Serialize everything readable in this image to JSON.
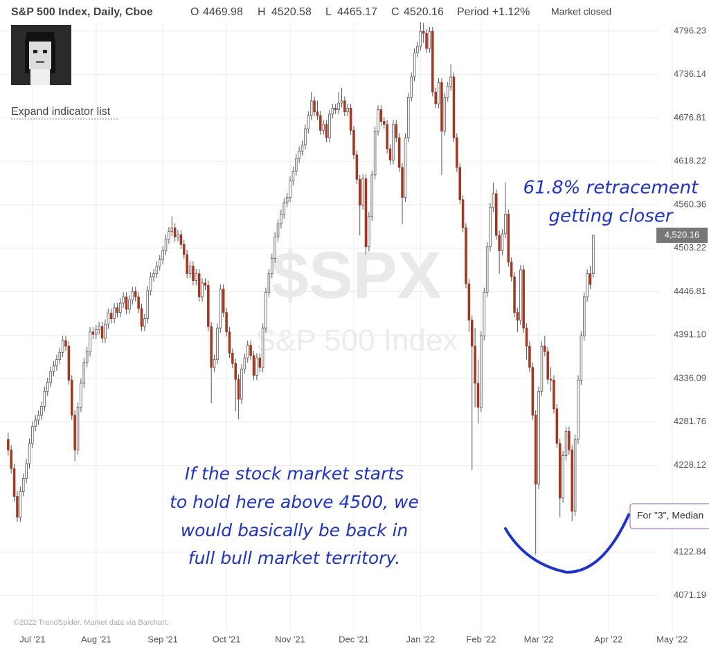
{
  "chart_data": {
    "type": "candlestick",
    "title": "S&P 500 Index, Daily, Cboe",
    "header": {
      "open_label": "O",
      "high_label": "H",
      "low_label": "L",
      "close_label": "C",
      "period": "Period +1.12%",
      "status": "Market closed"
    },
    "expand_link": "Expand indicator list",
    "watermark": "$SPX",
    "watermark_sub": "S&P 500 Index",
    "last_value_label": "4,520.16",
    "credit": "©2022 TrendSpider. Market data via Barchart.",
    "annotations": {
      "retracement": [
        "61.8% retracement",
        "getting closer"
      ],
      "note": [
        "If the stock market starts",
        "to hold here above 4500, we",
        "would basically be back in",
        "full bull market territory."
      ]
    },
    "tooltip": "For \"3\", Median",
    "up_color": "#ffffff",
    "down_color": "#a8351f",
    "wick_color": "#555555",
    "log_scale": true,
    "grid": true,
    "xlim": [
      -2.7,
      225
    ],
    "xticks": [
      {
        "value": 8,
        "label": "Jul '21"
      },
      {
        "value": 29,
        "label": "Aug '21"
      },
      {
        "value": 51,
        "label": "Sep '21"
      },
      {
        "value": 72,
        "label": "Oct '21"
      },
      {
        "value": 93,
        "label": "Nov '21"
      },
      {
        "value": 114,
        "label": "Dec '21"
      },
      {
        "value": 136,
        "label": "Jan '22"
      },
      {
        "value": 156,
        "label": "Feb '22"
      },
      {
        "value": 175,
        "label": "Mar '22"
      },
      {
        "value": 198,
        "label": "Apr '22"
      },
      {
        "value": 219,
        "label": "May '22"
      }
    ],
    "ylim": [
      4040,
      4830
    ],
    "yticks": [
      4796.23,
      4736.14,
      4676.81,
      4618.22,
      4560.36,
      4503.22,
      4446.81,
      {
        "value": 4391.1,
        "label": "4391.10"
      },
      4336.09,
      4281.76,
      4228.12,
      4122.84,
      4071.19
    ],
    "ohlc": [
      [
        4260,
        4268,
        4240,
        4247
      ],
      [
        4247,
        4253,
        4218,
        4224
      ],
      [
        4224,
        4230,
        4184,
        4190
      ],
      [
        4190,
        4196,
        4159,
        4165
      ],
      [
        4165,
        4202,
        4159,
        4196
      ],
      [
        4196,
        4218,
        4190,
        4212
      ],
      [
        4212,
        4236,
        4206,
        4230
      ],
      [
        4230,
        4261,
        4224,
        4255
      ],
      [
        4255,
        4282,
        4249,
        4276
      ],
      [
        4276,
        4290,
        4270,
        4284
      ],
      [
        4284,
        4296,
        4278,
        4290
      ],
      [
        4290,
        4307,
        4284,
        4301
      ],
      [
        4301,
        4326,
        4295,
        4320
      ],
      [
        4320,
        4337,
        4314,
        4331
      ],
      [
        4331,
        4351,
        4325,
        4345
      ],
      [
        4345,
        4358,
        4339,
        4352
      ],
      [
        4352,
        4366,
        4346,
        4360
      ],
      [
        4360,
        4375,
        4354,
        4369
      ],
      [
        4369,
        4390,
        4363,
        4384
      ],
      [
        4384,
        4390,
        4371,
        4377
      ],
      [
        4377,
        4383,
        4328,
        4334
      ],
      [
        4334,
        4340,
        4284,
        4290
      ],
      [
        4290,
        4296,
        4233,
        4247
      ],
      [
        4247,
        4306,
        4241,
        4300
      ],
      [
        4300,
        4336,
        4294,
        4330
      ],
      [
        4330,
        4362,
        4324,
        4356
      ],
      [
        4356,
        4376,
        4350,
        4370
      ],
      [
        4370,
        4401,
        4364,
        4395
      ],
      [
        4395,
        4401,
        4386,
        4392
      ],
      [
        4392,
        4404,
        4386,
        4398
      ],
      [
        4398,
        4408,
        4392,
        4402
      ],
      [
        4402,
        4408,
        4381,
        4387
      ],
      [
        4387,
        4411,
        4381,
        4405
      ],
      [
        4405,
        4425,
        4399,
        4419
      ],
      [
        4419,
        4425,
        4406,
        4412
      ],
      [
        4412,
        4432,
        4406,
        4426
      ],
      [
        4426,
        4432,
        4414,
        4420
      ],
      [
        4420,
        4438,
        4414,
        4432
      ],
      [
        4432,
        4446,
        4426,
        4440
      ],
      [
        4440,
        4446,
        4418,
        4424
      ],
      [
        4424,
        4442,
        4418,
        4436
      ],
      [
        4436,
        4453,
        4430,
        4447
      ],
      [
        4447,
        4453,
        4434,
        4440
      ],
      [
        4440,
        4446,
        4419,
        4425
      ],
      [
        4425,
        4431,
        4396,
        4402
      ],
      [
        4402,
        4418,
        4396,
        4412
      ],
      [
        4412,
        4454,
        4406,
        4448
      ],
      [
        4448,
        4472,
        4442,
        4466
      ],
      [
        4466,
        4476,
        4460,
        4470
      ],
      [
        4470,
        4486,
        4464,
        4480
      ],
      [
        4480,
        4494,
        4474,
        4488
      ],
      [
        4488,
        4506,
        4482,
        4500
      ],
      [
        4500,
        4521,
        4494,
        4515
      ],
      [
        4515,
        4531,
        4509,
        4525
      ],
      [
        4525,
        4545,
        4519,
        4530
      ],
      [
        4530,
        4536,
        4512,
        4518
      ],
      [
        4518,
        4527,
        4512,
        4521
      ],
      [
        4521,
        4527,
        4502,
        4508
      ],
      [
        4508,
        4514,
        4489,
        4495
      ],
      [
        4495,
        4501,
        4464,
        4470
      ],
      [
        4470,
        4486,
        4464,
        4480
      ],
      [
        4480,
        4486,
        4455,
        4461
      ],
      [
        4461,
        4476,
        4455,
        4470
      ],
      [
        4470,
        4476,
        4434,
        4440
      ],
      [
        4440,
        4464,
        4434,
        4458
      ],
      [
        4458,
        4464,
        4449,
        4455
      ],
      [
        4455,
        4461,
        4396,
        4402
      ],
      [
        4402,
        4408,
        4305,
        4350
      ],
      [
        4350,
        4366,
        4344,
        4360
      ],
      [
        4360,
        4406,
        4354,
        4400
      ],
      [
        4400,
        4456,
        4394,
        4450
      ],
      [
        4450,
        4456,
        4414,
        4420
      ],
      [
        4420,
        4426,
        4389,
        4395
      ],
      [
        4395,
        4401,
        4362,
        4368
      ],
      [
        4368,
        4374,
        4349,
        4355
      ],
      [
        4355,
        4361,
        4295,
        4335
      ],
      [
        4335,
        4341,
        4285,
        4310
      ],
      [
        4310,
        4354,
        4304,
        4348
      ],
      [
        4348,
        4368,
        4342,
        4362
      ],
      [
        4362,
        4384,
        4356,
        4378
      ],
      [
        4378,
        4384,
        4359,
        4365
      ],
      [
        4365,
        4371,
        4334,
        4340
      ],
      [
        4340,
        4368,
        4334,
        4362
      ],
      [
        4362,
        4368,
        4344,
        4350
      ],
      [
        4350,
        4406,
        4344,
        4400
      ],
      [
        4400,
        4452,
        4394,
        4446
      ],
      [
        4446,
        4476,
        4440,
        4470
      ],
      [
        4470,
        4496,
        4464,
        4490
      ],
      [
        4490,
        4524,
        4484,
        4518
      ],
      [
        4518,
        4541,
        4512,
        4535
      ],
      [
        4535,
        4554,
        4529,
        4548
      ],
      [
        4548,
        4569,
        4542,
        4563
      ],
      [
        4563,
        4576,
        4557,
        4570
      ],
      [
        4570,
        4598,
        4564,
        4592
      ],
      [
        4592,
        4611,
        4586,
        4605
      ],
      [
        4605,
        4628,
        4599,
        4622
      ],
      [
        4622,
        4638,
        4616,
        4632
      ],
      [
        4632,
        4646,
        4626,
        4640
      ],
      [
        4640,
        4668,
        4634,
        4662
      ],
      [
        4662,
        4686,
        4656,
        4680
      ],
      [
        4680,
        4712,
        4674,
        4700
      ],
      [
        4700,
        4706,
        4679,
        4685
      ],
      [
        4685,
        4700,
        4674,
        4680
      ],
      [
        4680,
        4686,
        4654,
        4660
      ],
      [
        4660,
        4674,
        4654,
        4668
      ],
      [
        4668,
        4674,
        4644,
        4650
      ],
      [
        4650,
        4688,
        4644,
        4682
      ],
      [
        4682,
        4696,
        4676,
        4690
      ],
      [
        4690,
        4696,
        4682,
        4688
      ],
      [
        4688,
        4712,
        4682,
        4697
      ],
      [
        4697,
        4718,
        4691,
        4700
      ],
      [
        4700,
        4706,
        4679,
        4685
      ],
      [
        4685,
        4696,
        4679,
        4690
      ],
      [
        4690,
        4696,
        4654,
        4660
      ],
      [
        4660,
        4666,
        4621,
        4627
      ],
      [
        4627,
        4633,
        4588,
        4594
      ],
      [
        4594,
        4600,
        4520,
        4560
      ],
      [
        4560,
        4601,
        4554,
        4595
      ],
      [
        4595,
        4601,
        4495,
        4505
      ],
      [
        4505,
        4551,
        4499,
        4545
      ],
      [
        4545,
        4606,
        4539,
        4600
      ],
      [
        4600,
        4665,
        4594,
        4659
      ],
      [
        4659,
        4694,
        4653,
        4688
      ],
      [
        4688,
        4694,
        4666,
        4672
      ],
      [
        4672,
        4678,
        4662,
        4668
      ],
      [
        4668,
        4674,
        4629,
        4635
      ],
      [
        4635,
        4641,
        4614,
        4620
      ],
      [
        4620,
        4674,
        4614,
        4668
      ],
      [
        4668,
        4674,
        4644,
        4650
      ],
      [
        4650,
        4656,
        4604,
        4610
      ],
      [
        4610,
        4616,
        4535,
        4570
      ],
      [
        4570,
        4656,
        4564,
        4650
      ],
      [
        4650,
        4711,
        4644,
        4705
      ],
      [
        4705,
        4739,
        4699,
        4733
      ],
      [
        4733,
        4772,
        4727,
        4766
      ],
      [
        4766,
        4781,
        4760,
        4775
      ],
      [
        4775,
        4818,
        4769,
        4796
      ],
      [
        4796,
        4808,
        4780,
        4793
      ],
      [
        4793,
        4799,
        4766,
        4772
      ],
      [
        4772,
        4802,
        4766,
        4796
      ],
      [
        4796,
        4802,
        4706,
        4712
      ],
      [
        4712,
        4718,
        4690,
        4696
      ],
      [
        4696,
        4731,
        4690,
        4725
      ],
      [
        4725,
        4731,
        4600,
        4659
      ],
      [
        4659,
        4711,
        4653,
        4705
      ],
      [
        4705,
        4726,
        4699,
        4720
      ],
      [
        4720,
        4750,
        4714,
        4733
      ],
      [
        4733,
        4739,
        4644,
        4650
      ],
      [
        4650,
        4656,
        4604,
        4610
      ],
      [
        4610,
        4616,
        4561,
        4567
      ],
      [
        4567,
        4573,
        4524,
        4530
      ],
      [
        4530,
        4536,
        4451,
        4457
      ],
      [
        4457,
        4463,
        4395,
        4410
      ],
      [
        4410,
        4416,
        4222,
        4377
      ],
      [
        4377,
        4400,
        4300,
        4330
      ],
      [
        4330,
        4360,
        4280,
        4300
      ],
      [
        4300,
        4396,
        4294,
        4390
      ],
      [
        4390,
        4452,
        4384,
        4446
      ],
      [
        4446,
        4511,
        4440,
        4505
      ],
      [
        4505,
        4563,
        4499,
        4557
      ],
      [
        4557,
        4590,
        4551,
        4575
      ],
      [
        4575,
        4581,
        4514,
        4520
      ],
      [
        4520,
        4526,
        4470,
        4500
      ],
      [
        4500,
        4528,
        4494,
        4522
      ],
      [
        4522,
        4590,
        4516,
        4548
      ],
      [
        4548,
        4554,
        4479,
        4485
      ],
      [
        4485,
        4491,
        4460,
        4466
      ],
      [
        4466,
        4472,
        4414,
        4420
      ],
      [
        4420,
        4426,
        4395,
        4410
      ],
      [
        4410,
        4481,
        4404,
        4475
      ],
      [
        4475,
        4481,
        4394,
        4400
      ],
      [
        4400,
        4406,
        4360,
        4377
      ],
      [
        4377,
        4383,
        4344,
        4350
      ],
      [
        4350,
        4356,
        4284,
        4290
      ],
      [
        4290,
        4296,
        4120,
        4205
      ],
      [
        4205,
        4326,
        4199,
        4320
      ],
      [
        4320,
        4383,
        4314,
        4377
      ],
      [
        4377,
        4390,
        4364,
        4370
      ],
      [
        4370,
        4376,
        4329,
        4335
      ],
      [
        4335,
        4350,
        4320,
        4334
      ],
      [
        4334,
        4340,
        4292,
        4298
      ],
      [
        4298,
        4304,
        4249,
        4255
      ],
      [
        4255,
        4261,
        4165,
        4188
      ],
      [
        4188,
        4246,
        4182,
        4240
      ],
      [
        4240,
        4276,
        4234,
        4270
      ],
      [
        4270,
        4276,
        4241,
        4247
      ],
      [
        4247,
        4253,
        4160,
        4172
      ],
      [
        4172,
        4266,
        4166,
        4260
      ],
      [
        4260,
        4340,
        4254,
        4334
      ],
      [
        4334,
        4396,
        4328,
        4390
      ],
      [
        4390,
        4446,
        4384,
        4440
      ],
      [
        4440,
        4476,
        4434,
        4470
      ],
      [
        4470,
        4480,
        4450,
        4456
      ],
      [
        4469.98,
        4520.58,
        4465.17,
        4520.16
      ]
    ]
  }
}
